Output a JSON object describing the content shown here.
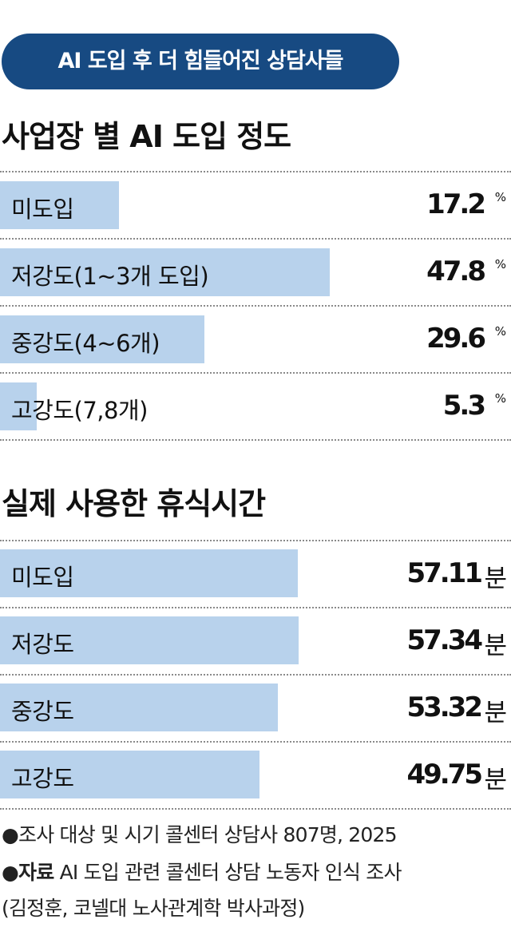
{
  "banner": "AI 도입 후 더 힘들어진 상담사들",
  "chart_data": [
    {
      "type": "bar",
      "title": "사업장 별 AI 도입 정도",
      "categories": [
        "미도입",
        "저강도(1~3개 도입)",
        "중강도(4~6개)",
        "고강도(7,8개)"
      ],
      "values": [
        17.2,
        47.8,
        29.6,
        5.3
      ],
      "value_labels": [
        "17.2",
        "47.8",
        "29.6",
        "5.3"
      ],
      "unit": "%",
      "orientation": "horizontal",
      "xlim": [
        0,
        74
      ]
    },
    {
      "type": "bar",
      "title": "실제 사용한 휴식시간",
      "categories": [
        "미도입",
        "저강도",
        "중강도",
        "고강도"
      ],
      "values": [
        57.11,
        57.34,
        53.32,
        49.75
      ],
      "value_labels": [
        "57.11",
        "57.34",
        "53.32",
        "49.75"
      ],
      "unit": "분",
      "orientation": "horizontal",
      "xlim": [
        0,
        98
      ]
    }
  ],
  "footnotes": {
    "line1": "●조사 대상 및 시기 콜센터 상담사 807명, 2025",
    "source_label": "●자료",
    "source_text": " AI 도입 관련 콜센터 상담 노동자 인식 조사",
    "line3": "(김정훈, 코넬대 노사관계학 박사과정)"
  },
  "colors": {
    "banner_bg": "#174a82",
    "bar_fill": "#b8d2ec",
    "text": "#111111"
  }
}
